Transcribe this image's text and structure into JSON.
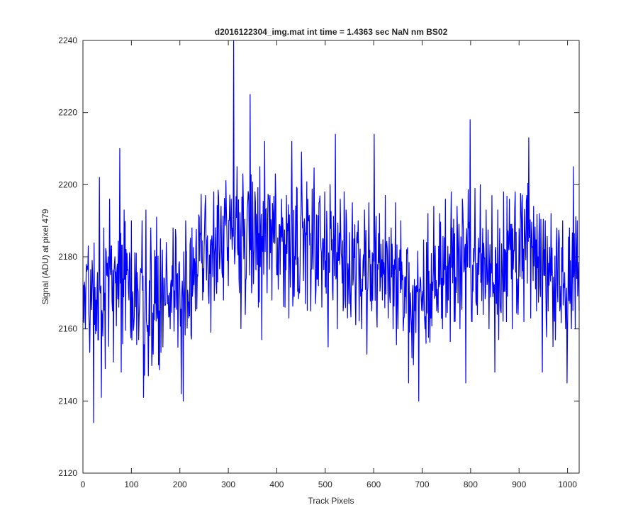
{
  "chart_data": {
    "type": "line",
    "title": "d2016122304_img.mat int time = 1.4363 sec  NaN nm BS02",
    "xlabel": "Track Pixels",
    "ylabel": "Signal (ADU) at pixel 479",
    "xlim": [
      0,
      1024
    ],
    "ylim": [
      2120,
      2240
    ],
    "xticks": [
      0,
      100,
      200,
      300,
      400,
      500,
      600,
      700,
      800,
      900,
      1000
    ],
    "yticks": [
      2120,
      2140,
      2160,
      2180,
      2200,
      2220,
      2240
    ],
    "grid": false,
    "line_color": "#0000ff",
    "anchors": [
      [
        0,
        2172
      ],
      [
        10,
        2168
      ],
      [
        20,
        2170
      ],
      [
        30,
        2166
      ],
      [
        40,
        2171
      ],
      [
        60,
        2170
      ],
      [
        80,
        2172
      ],
      [
        100,
        2172
      ],
      [
        120,
        2168
      ],
      [
        140,
        2167
      ],
      [
        160,
        2169
      ],
      [
        180,
        2170
      ],
      [
        200,
        2172
      ],
      [
        220,
        2176
      ],
      [
        240,
        2178
      ],
      [
        260,
        2180
      ],
      [
        280,
        2182
      ],
      [
        300,
        2184
      ],
      [
        320,
        2185
      ],
      [
        340,
        2186
      ],
      [
        360,
        2186
      ],
      [
        380,
        2187
      ],
      [
        400,
        2186
      ],
      [
        420,
        2185
      ],
      [
        440,
        2185
      ],
      [
        460,
        2184
      ],
      [
        480,
        2184
      ],
      [
        500,
        2183
      ],
      [
        520,
        2183
      ],
      [
        540,
        2181
      ],
      [
        560,
        2180
      ],
      [
        580,
        2178
      ],
      [
        600,
        2177
      ],
      [
        620,
        2177
      ],
      [
        640,
        2175
      ],
      [
        660,
        2172
      ],
      [
        680,
        2168
      ],
      [
        700,
        2166
      ],
      [
        720,
        2172
      ],
      [
        740,
        2176
      ],
      [
        760,
        2178
      ],
      [
        780,
        2178
      ],
      [
        800,
        2180
      ],
      [
        820,
        2178
      ],
      [
        840,
        2176
      ],
      [
        860,
        2177
      ],
      [
        880,
        2180
      ],
      [
        900,
        2182
      ],
      [
        920,
        2180
      ],
      [
        940,
        2178
      ],
      [
        960,
        2175
      ],
      [
        980,
        2175
      ],
      [
        1000,
        2174
      ],
      [
        1024,
        2174
      ]
    ],
    "amplitude": 8.5,
    "spikes": [
      [
        0,
        2162
      ],
      [
        3,
        2173
      ],
      [
        5,
        2160
      ],
      [
        8,
        2176
      ],
      [
        11,
        2183
      ],
      [
        15,
        2164
      ],
      [
        20,
        2175
      ],
      [
        22,
        2134
      ],
      [
        27,
        2168
      ],
      [
        32,
        2157
      ],
      [
        34,
        2202
      ],
      [
        38,
        2141
      ],
      [
        41,
        2158
      ],
      [
        43,
        2188
      ],
      [
        46,
        2149
      ],
      [
        52,
        2180
      ],
      [
        55,
        2196
      ],
      [
        61,
        2165
      ],
      [
        66,
        2180
      ],
      [
        74,
        2166
      ],
      [
        76,
        2210
      ],
      [
        79,
        2148
      ],
      [
        85,
        2193
      ],
      [
        90,
        2175
      ],
      [
        95,
        2168
      ],
      [
        100,
        2190
      ],
      [
        105,
        2161
      ],
      [
        110,
        2181
      ],
      [
        115,
        2157
      ],
      [
        120,
        2176
      ],
      [
        122,
        2190
      ],
      [
        125,
        2141
      ],
      [
        130,
        2193
      ],
      [
        135,
        2147
      ],
      [
        140,
        2188
      ],
      [
        145,
        2153
      ],
      [
        150,
        2180
      ],
      [
        152,
        2191
      ],
      [
        156,
        2150
      ],
      [
        160,
        2185
      ],
      [
        165,
        2155
      ],
      [
        172,
        2184
      ],
      [
        180,
        2160
      ],
      [
        186,
        2188
      ],
      [
        190,
        2166
      ],
      [
        198,
        2178
      ],
      [
        203,
        2142
      ],
      [
        207,
        2140
      ],
      [
        212,
        2190
      ],
      [
        218,
        2163
      ],
      [
        225,
        2188
      ],
      [
        232,
        2165
      ],
      [
        240,
        2191
      ],
      [
        247,
        2168
      ],
      [
        253,
        2197
      ],
      [
        259,
        2170
      ],
      [
        265,
        2183
      ],
      [
        270,
        2198
      ],
      [
        278,
        2173
      ],
      [
        285,
        2194
      ],
      [
        290,
        2168
      ],
      [
        296,
        2193
      ],
      [
        300,
        2172
      ],
      [
        306,
        2196
      ],
      [
        311,
        2240
      ],
      [
        313,
        2178
      ],
      [
        318,
        2205
      ],
      [
        323,
        2170
      ],
      [
        330,
        2203
      ],
      [
        335,
        2164
      ],
      [
        340,
        2195
      ],
      [
        345,
        2225
      ],
      [
        348,
        2170
      ],
      [
        355,
        2198
      ],
      [
        362,
        2166
      ],
      [
        365,
        2205
      ],
      [
        369,
        2157
      ],
      [
        375,
        2212
      ],
      [
        380,
        2170
      ],
      [
        386,
        2197
      ],
      [
        390,
        2168
      ],
      [
        397,
        2203
      ],
      [
        403,
        2171
      ],
      [
        410,
        2196
      ],
      [
        417,
        2166
      ],
      [
        420,
        2197
      ],
      [
        425,
        2163
      ],
      [
        431,
        2212
      ],
      [
        436,
        2169
      ],
      [
        442,
        2199
      ],
      [
        447,
        2170
      ],
      [
        452,
        2198
      ],
      [
        459,
        2167
      ],
      [
        464,
        2196
      ],
      [
        470,
        2165
      ],
      [
        476,
        2194
      ],
      [
        480,
        2167
      ],
      [
        487,
        2195
      ],
      [
        493,
        2166
      ],
      [
        499,
        2198
      ],
      [
        506,
        2155
      ],
      [
        510,
        2200
      ],
      [
        516,
        2168
      ],
      [
        521,
        2214
      ],
      [
        525,
        2160
      ],
      [
        531,
        2196
      ],
      [
        537,
        2165
      ],
      [
        543,
        2193
      ],
      [
        549,
        2167
      ],
      [
        556,
        2195
      ],
      [
        562,
        2168
      ],
      [
        568,
        2190
      ],
      [
        575,
        2160
      ],
      [
        581,
        2193
      ],
      [
        586,
        2153
      ],
      [
        590,
        2195
      ],
      [
        596,
        2165
      ],
      [
        601,
        2214
      ],
      [
        606,
        2165
      ],
      [
        612,
        2192
      ],
      [
        618,
        2168
      ],
      [
        624,
        2197
      ],
      [
        630,
        2163
      ],
      [
        636,
        2188
      ],
      [
        640,
        2160
      ],
      [
        645,
        2195
      ],
      [
        650,
        2160
      ],
      [
        656,
        2190
      ],
      [
        662,
        2163
      ],
      [
        668,
        2182
      ],
      [
        672,
        2145
      ],
      [
        676,
        2170
      ],
      [
        682,
        2150
      ],
      [
        688,
        2172
      ],
      [
        693,
        2140
      ],
      [
        700,
        2169
      ],
      [
        706,
        2160
      ],
      [
        712,
        2192
      ],
      [
        718,
        2163
      ],
      [
        724,
        2194
      ],
      [
        730,
        2165
      ],
      [
        736,
        2192
      ],
      [
        742,
        2160
      ],
      [
        748,
        2196
      ],
      [
        754,
        2168
      ],
      [
        760,
        2198
      ],
      [
        766,
        2162
      ],
      [
        772,
        2194
      ],
      [
        778,
        2160
      ],
      [
        784,
        2193
      ],
      [
        790,
        2145
      ],
      [
        796,
        2188
      ],
      [
        799,
        2218
      ],
      [
        803,
        2162
      ],
      [
        809,
        2199
      ],
      [
        814,
        2164
      ],
      [
        820,
        2200
      ],
      [
        826,
        2164
      ],
      [
        832,
        2193
      ],
      [
        838,
        2160
      ],
      [
        844,
        2197
      ],
      [
        850,
        2148
      ],
      [
        856,
        2193
      ],
      [
        862,
        2165
      ],
      [
        868,
        2198
      ],
      [
        874,
        2162
      ],
      [
        880,
        2196
      ],
      [
        886,
        2160
      ],
      [
        892,
        2198
      ],
      [
        898,
        2164
      ],
      [
        904,
        2195
      ],
      [
        910,
        2162
      ],
      [
        916,
        2197
      ],
      [
        920,
        2213
      ],
      [
        924,
        2163
      ],
      [
        930,
        2194
      ],
      [
        936,
        2165
      ],
      [
        942,
        2192
      ],
      [
        948,
        2148
      ],
      [
        954,
        2190
      ],
      [
        960,
        2165
      ],
      [
        966,
        2192
      ],
      [
        972,
        2168
      ],
      [
        978,
        2188
      ],
      [
        984,
        2165
      ],
      [
        990,
        2190
      ],
      [
        996,
        2160
      ],
      [
        999,
        2145
      ],
      [
        1004,
        2188
      ],
      [
        1008,
        2160
      ],
      [
        1012,
        2205
      ],
      [
        1016,
        2160
      ],
      [
        1020,
        2190
      ],
      [
        1024,
        2165
      ]
    ]
  }
}
